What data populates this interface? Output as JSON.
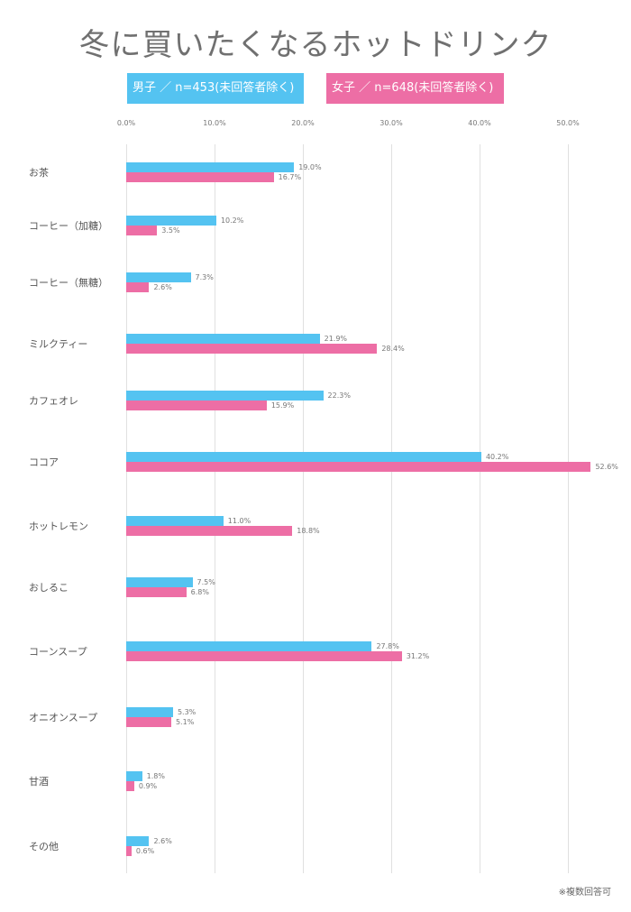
{
  "chart_data": {
    "type": "bar",
    "orientation": "horizontal",
    "title": "冬に買いたくなるホットドリンク",
    "xlim": [
      0,
      53
    ],
    "x_ticks": [
      "0.0%",
      "10.0%",
      "20.0%",
      "30.0%",
      "40.0%",
      "50.0%"
    ],
    "grid": true,
    "legend_position": "top",
    "categories": [
      "お茶",
      "コーヒー（加糖）",
      "コーヒー（無糖）",
      "ミルクティー",
      "カフェオレ",
      "ココア",
      "ホットレモン",
      "おしるこ",
      "コーンスープ",
      "オニオンスープ",
      "甘酒",
      "その他"
    ],
    "series": [
      {
        "name": "男子 ／ n=453(未回答者除く)",
        "color": "#54c3f1",
        "values": [
          19.0,
          10.2,
          7.3,
          21.9,
          22.3,
          40.2,
          11.0,
          7.5,
          27.8,
          5.3,
          1.8,
          2.6
        ]
      },
      {
        "name": "女子 ／ n=648(未回答者除く)",
        "color": "#ed6ea5",
        "values": [
          16.7,
          3.5,
          2.6,
          28.4,
          15.9,
          52.6,
          18.8,
          6.8,
          31.2,
          5.1,
          0.9,
          0.6
        ]
      }
    ],
    "note": "※複数回答可"
  }
}
